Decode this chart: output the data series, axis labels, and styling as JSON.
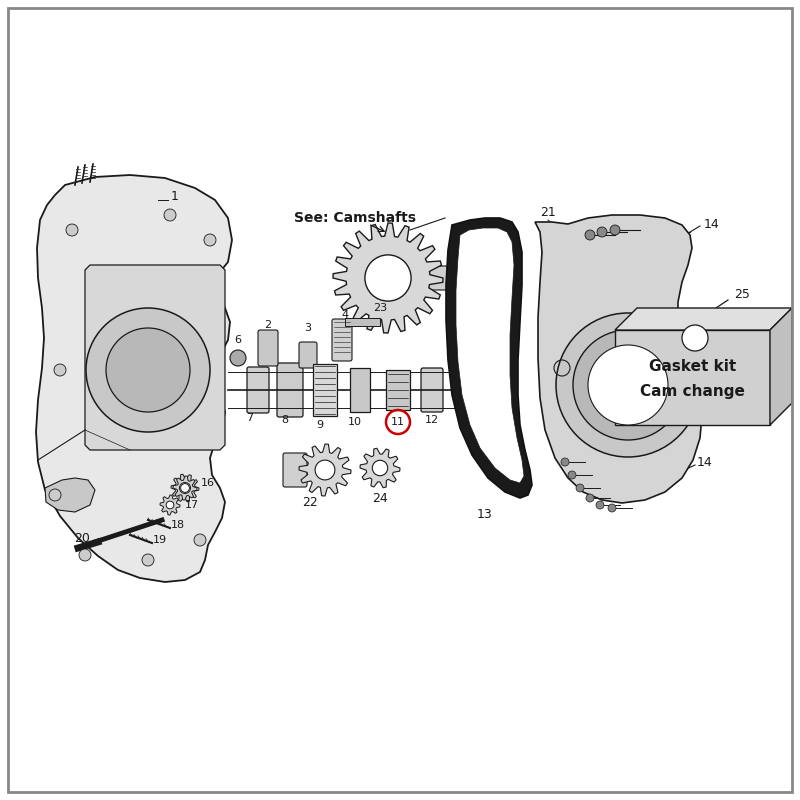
{
  "bg_color": "#ffffff",
  "line_color": "#1a1a1a",
  "highlight_color": "#cc0000",
  "gasket_text1": "Gasket kit",
  "gasket_text2": "Cam change",
  "fig_width": 8.0,
  "fig_height": 8.0,
  "dpi": 100
}
